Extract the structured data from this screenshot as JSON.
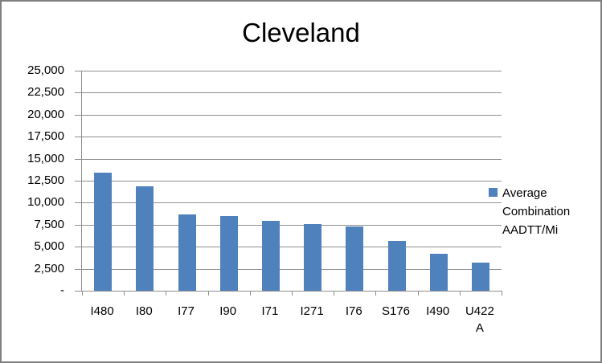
{
  "window": {
    "background": "#ffffff",
    "border_color": "#808080"
  },
  "chart_data": {
    "type": "bar",
    "title": "Cleveland",
    "categories": [
      "I480",
      "I80",
      "I77",
      "I90",
      "I71",
      "I271",
      "I76",
      "S176",
      "I490",
      "U422 A"
    ],
    "series": [
      {
        "name": "Average Combination AADTT/Mi",
        "values": [
          13400,
          11850,
          8650,
          8450,
          7950,
          7550,
          7300,
          5700,
          4200,
          3200
        ]
      }
    ],
    "xlabel": "",
    "ylabel": "",
    "ylim": [
      0,
      25000
    ],
    "ytick_step": 2500,
    "ytick_labels": [
      "-",
      "2,500",
      "5,000",
      "7,500",
      "10,000",
      "12,500",
      "15,000",
      "17,500",
      "20,000",
      "22,500",
      "25,000"
    ],
    "grid": true,
    "legend_position": "right",
    "bar_color": "#4F81BD",
    "axis_color": "#8E8E8E",
    "text_color": "#000000"
  },
  "legend": {
    "label": "Average Combination AADTT/Mi"
  }
}
